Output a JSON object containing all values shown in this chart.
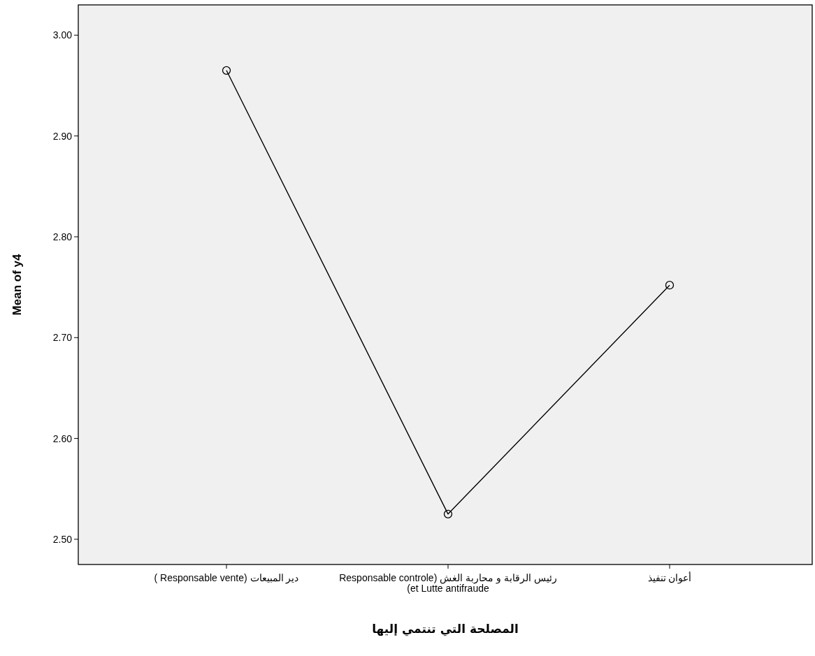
{
  "chart_data": {
    "type": "line",
    "xlabel": "المصلحة التي تنتمي إليها",
    "ylabel": "Mean of y4",
    "categories": [
      "دير المبيعات (Responsable vente )",
      "رئيس الرقابة و محاربة الغش (Responsable controle et Lutte antifraude)",
      "أعوان تنفيذ"
    ],
    "values": [
      2.965,
      2.525,
      2.752
    ],
    "color": "#000000",
    "marker": "circle",
    "line_style": "solid",
    "ylim": [
      2.475,
      3.03
    ],
    "yticks": [
      {
        "value": 2.5,
        "label": "2.50"
      },
      {
        "value": 2.6,
        "label": "2.60"
      },
      {
        "value": 2.7,
        "label": "2.70"
      },
      {
        "value": 2.8,
        "label": "2.80"
      },
      {
        "value": 2.9,
        "label": "2.90"
      },
      {
        "value": 3.0,
        "label": "3.00"
      }
    ],
    "grid": false
  }
}
